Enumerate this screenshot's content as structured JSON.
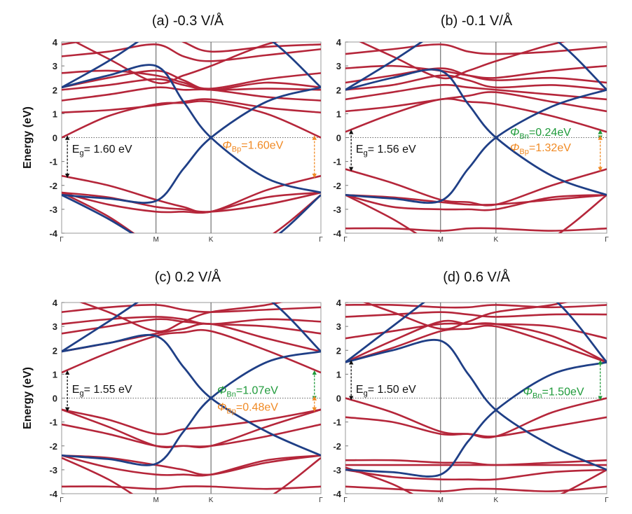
{
  "chart_data": {
    "type": "line",
    "ylabel": "Energy (eV)",
    "ylim": [
      -4,
      4
    ],
    "y_ticks": [
      "4",
      "3",
      "2",
      "1",
      "0",
      "-1",
      "-2",
      "-3",
      "-4"
    ],
    "k_labels": [
      "Γ",
      "M",
      "K",
      "Γ"
    ],
    "k_positions": [
      0,
      0.364,
      0.576,
      1
    ],
    "sample_k": [
      0,
      0.18,
      0.364,
      0.47,
      0.576,
      0.79,
      1
    ],
    "colors": {
      "red": "#b5263a",
      "blue": "#1f3f86",
      "gap": "#111111",
      "bn": "#1f9a3a",
      "bp": "#f08a24"
    },
    "panels": [
      {
        "title": "(a) -0.3 V/Å",
        "red_bands": [
          [
            0,
            0.9,
            1.4,
            1.45,
            1.5,
            1.0,
            0
          ],
          [
            1.05,
            1.15,
            1.35,
            1.5,
            1.6,
            1.25,
            1.05
          ],
          [
            1.55,
            1.8,
            2.1,
            2.0,
            2.0,
            1.7,
            1.55
          ],
          [
            2.0,
            2.2,
            2.45,
            2.2,
            2.0,
            2.05,
            2.0
          ],
          [
            2.1,
            2.5,
            2.8,
            2.4,
            2.0,
            2.3,
            2.1
          ],
          [
            2.7,
            2.8,
            2.6,
            2.3,
            2.05,
            2.45,
            2.7
          ],
          [
            3.4,
            3.6,
            3.9,
            3.4,
            3.2,
            3.45,
            3.7
          ],
          [
            4.3,
            3.3,
            2.3,
            2.6,
            3.0,
            3.9,
            4.4
          ],
          [
            3.9,
            4.2,
            4.5,
            4.0,
            3.6,
            3.8,
            3.9
          ],
          [
            -1.6,
            -2.0,
            -2.6,
            -2.9,
            -3.1,
            -2.2,
            -1.6
          ],
          [
            -2.3,
            -2.5,
            -2.9,
            -3.0,
            -3.1,
            -2.8,
            -2.3
          ],
          [
            -2.3,
            -2.8,
            -3.1,
            -3.1,
            -3.1,
            -2.5,
            -2.3
          ],
          [
            -2.3,
            -3.3,
            -4.6,
            -4.8,
            -5,
            -4.2,
            -2.4
          ]
        ],
        "blue_bands": [
          [
            2.1,
            2.6,
            3.0,
            1.5,
            0,
            -1.7,
            -2.3
          ],
          [
            -2.4,
            -2.55,
            -2.65,
            -1.3,
            0,
            1.5,
            2.1
          ],
          [
            2.1,
            3.2,
            4.5,
            5,
            5,
            4.2,
            2.1
          ],
          [
            -2.4,
            -3.4,
            -4.6,
            -5,
            -5,
            -4.4,
            -2.4
          ]
        ],
        "gap": {
          "label": "E",
          "sub": "g",
          "value": "= 1.60 eV",
          "from": 0,
          "to": -1.6
        },
        "phi_bn": null,
        "phi_bp": {
          "symbol": "Φ",
          "sub": "Bp",
          "value": "=1.60eV",
          "from": 0,
          "to": -1.6
        }
      },
      {
        "title": "(b) -0.1 V/Å",
        "red_bands": [
          [
            0.24,
            1.0,
            1.6,
            1.5,
            1.4,
            0.9,
            0.24
          ],
          [
            1.1,
            1.3,
            1.6,
            1.75,
            1.9,
            1.5,
            1.1
          ],
          [
            1.6,
            1.9,
            2.2,
            2.1,
            2.0,
            1.8,
            1.6
          ],
          [
            2.0,
            2.2,
            2.6,
            2.4,
            2.1,
            2.2,
            2.0
          ],
          [
            2.3,
            2.6,
            2.9,
            2.6,
            2.4,
            2.5,
            2.3
          ],
          [
            2.9,
            3.0,
            2.8,
            2.6,
            2.5,
            2.8,
            3.0
          ],
          [
            3.5,
            3.7,
            3.9,
            3.6,
            3.5,
            3.6,
            3.8
          ],
          [
            4.3,
            3.4,
            2.5,
            2.8,
            3.2,
            3.9,
            4.4
          ],
          [
            -1.32,
            -1.9,
            -2.6,
            -2.7,
            -2.8,
            -2.0,
            -1.32
          ],
          [
            -2.4,
            -2.5,
            -2.7,
            -2.8,
            -2.8,
            -2.6,
            -2.4
          ],
          [
            -2.4,
            -2.9,
            -3.0,
            -3.0,
            -3.0,
            -2.5,
            -2.4
          ],
          [
            -3.8,
            -3.8,
            -3.9,
            -3.8,
            -3.8,
            -3.9,
            -3.8
          ],
          [
            -2.4,
            -3.4,
            -4.6,
            -4.8,
            -5,
            -4.2,
            -2.4
          ]
        ],
        "blue_bands": [
          [
            2.0,
            2.5,
            2.8,
            1.4,
            0,
            -1.6,
            -2.4
          ],
          [
            -2.4,
            -2.55,
            -2.65,
            -1.3,
            0,
            1.3,
            2.0
          ],
          [
            2.0,
            3.2,
            4.5,
            5,
            5,
            4.2,
            2.0
          ]
        ],
        "gap": {
          "label": "E",
          "sub": "g",
          "value": "= 1.56 eV",
          "from": 0.24,
          "to": -1.32
        },
        "phi_bn": {
          "symbol": "Φ",
          "sub": "Bn",
          "value": "=0.24eV",
          "from": 0,
          "to": 0.24
        },
        "phi_bp": {
          "symbol": "Φ",
          "sub": "Bp",
          "value": "=1.32eV",
          "from": 0,
          "to": -1.32
        }
      },
      {
        "title": "(c) 0.2 V/Å",
        "red_bands": [
          [
            1.07,
            1.9,
            2.6,
            2.75,
            2.8,
            2.0,
            1.07
          ],
          [
            1.95,
            2.3,
            2.7,
            2.9,
            3.1,
            2.5,
            1.95
          ],
          [
            2.7,
            3.0,
            3.3,
            3.2,
            3.1,
            3.0,
            2.7
          ],
          [
            3.1,
            3.3,
            3.4,
            3.3,
            3.1,
            3.3,
            3.2
          ],
          [
            3.6,
            3.8,
            3.9,
            3.7,
            3.6,
            3.7,
            3.8
          ],
          [
            4.3,
            3.6,
            2.8,
            3.2,
            3.6,
            3.9,
            4.4
          ],
          [
            -0.48,
            -1.2,
            -2.0,
            -2.0,
            -2.0,
            -1.2,
            -0.48
          ],
          [
            -0.48,
            -0.9,
            -1.5,
            -1.3,
            -1.2,
            -0.9,
            -0.48
          ],
          [
            -1.1,
            -1.5,
            -2.0,
            -2.0,
            -2.0,
            -1.6,
            -1.1
          ],
          [
            -2.4,
            -2.5,
            -2.8,
            -3.0,
            -3.2,
            -2.7,
            -2.4
          ],
          [
            -2.4,
            -2.9,
            -3.2,
            -3.2,
            -3.2,
            -2.6,
            -2.4
          ],
          [
            -3.7,
            -3.7,
            -3.8,
            -3.7,
            -3.7,
            -3.8,
            -3.7
          ],
          [
            -2.5,
            -3.4,
            -4.6,
            -4.8,
            -5,
            -4.2,
            -2.5
          ]
        ],
        "blue_bands": [
          [
            1.95,
            2.3,
            2.6,
            1.3,
            0,
            -1.4,
            -2.4
          ],
          [
            -2.4,
            -2.55,
            -2.75,
            -1.4,
            0,
            1.5,
            1.95
          ],
          [
            1.95,
            3.2,
            4.5,
            5,
            5,
            4.2,
            1.95
          ]
        ],
        "gap": {
          "label": "E",
          "sub": "g",
          "value": "= 1.55 eV",
          "from": 1.07,
          "to": -0.48
        },
        "phi_bn": {
          "symbol": "Φ",
          "sub": "Bn",
          "value": "=1.07eV",
          "from": 0,
          "to": 1.07
        },
        "phi_bp": {
          "symbol": "Φ",
          "sub": "Bp",
          "value": "=0.48eV",
          "from": 0,
          "to": -0.48
        }
      },
      {
        "title": "(d) 0.6 V/Å",
        "red_bands": [
          [
            1.5,
            2.1,
            2.8,
            2.9,
            3.0,
            2.3,
            1.5
          ],
          [
            1.5,
            2.4,
            3.2,
            3.1,
            3.1,
            2.6,
            1.5
          ],
          [
            2.5,
            2.8,
            3.1,
            3.1,
            3.1,
            3.0,
            2.5
          ],
          [
            3.4,
            3.5,
            3.6,
            3.5,
            3.4,
            3.5,
            3.5
          ],
          [
            3.9,
            3.9,
            3.8,
            3.8,
            3.9,
            3.8,
            3.9
          ],
          [
            4.3,
            3.6,
            2.9,
            3.2,
            3.6,
            3.9,
            4.4
          ],
          [
            0,
            -0.6,
            -1.4,
            -1.5,
            -1.6,
            -0.6,
            0
          ],
          [
            -0.8,
            -1.0,
            -1.5,
            -1.5,
            -1.6,
            -1.2,
            -0.8
          ],
          [
            -2.6,
            -2.6,
            -2.7,
            -2.7,
            -2.8,
            -2.7,
            -2.6
          ],
          [
            -2.8,
            -2.8,
            -2.8,
            -2.8,
            -2.8,
            -2.8,
            -2.8
          ],
          [
            -3.0,
            -3.3,
            -3.4,
            -3.4,
            -3.4,
            -3.1,
            -3.0
          ],
          [
            -3.7,
            -3.8,
            -3.9,
            -3.8,
            -3.8,
            -3.9,
            -3.7
          ],
          [
            -2.9,
            -3.6,
            -4.6,
            -4.8,
            -5,
            -4.2,
            -3.0
          ]
        ],
        "blue_bands": [
          [
            1.5,
            2.0,
            2.4,
            1.0,
            -0.5,
            -2.0,
            -3.0
          ],
          [
            -3.0,
            -3.1,
            -3.2,
            -1.8,
            -0.5,
            1.0,
            1.5
          ],
          [
            1.5,
            3.0,
            4.5,
            5,
            5,
            4.2,
            1.5
          ]
        ],
        "gap": {
          "label": "E",
          "sub": "g",
          "value": "= 1.50 eV",
          "from": 1.5,
          "to": 0
        },
        "phi_bn": {
          "symbol": "Φ",
          "sub": "Bn",
          "value": "=1.50eV",
          "from": 0,
          "to": 1.5
        },
        "phi_bp": null
      }
    ]
  }
}
